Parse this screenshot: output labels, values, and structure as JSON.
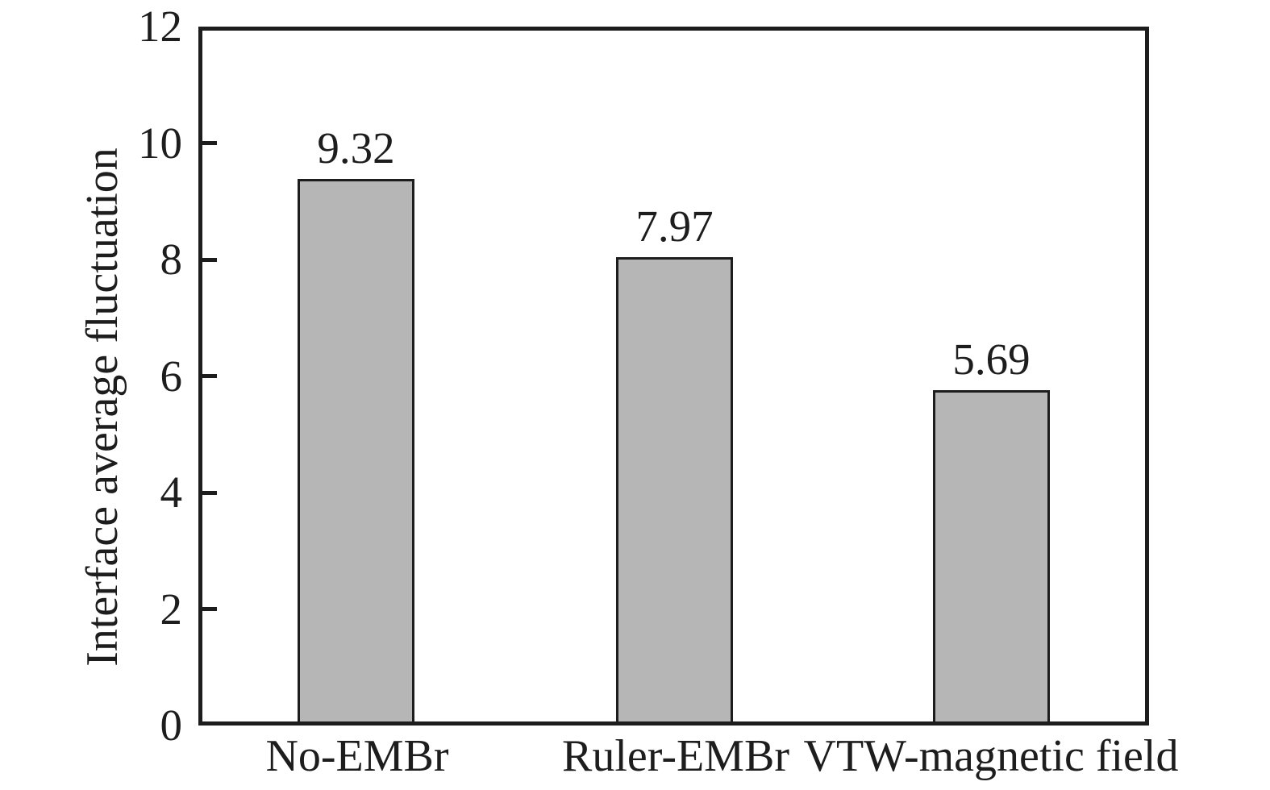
{
  "chart_data": {
    "type": "bar",
    "title": "",
    "categories": [
      "No-EMBr",
      "Ruler-EMBr",
      "VTW-magnetic field"
    ],
    "values": [
      9.32,
      7.97,
      5.69
    ],
    "value_labels": [
      "9.32",
      "7.97",
      "5.69"
    ],
    "xlabel": "",
    "ylabel": "Interface average fluctuation",
    "ylim": [
      0,
      12
    ],
    "yticks": [
      "12",
      "10",
      "8",
      "6",
      "4",
      "2",
      "0"
    ],
    "grid": false,
    "legend_position": "none",
    "bar_color": "#b6b6b6",
    "bar_border_color": "#1d1d1d",
    "axis_color": "#1d1d1d",
    "background_color": "#ffffff"
  }
}
